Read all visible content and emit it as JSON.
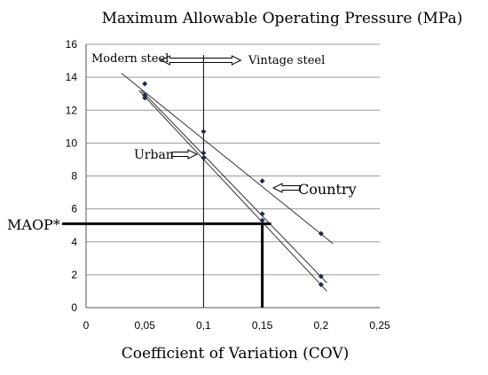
{
  "chart_data": {
    "type": "line",
    "title": "Maximum Allowable Operating Pressure (MPa)",
    "xlabel": "Coefficient of Variation (COV)",
    "ylabel": "",
    "xlim": [
      0,
      0.25
    ],
    "ylim": [
      0,
      16
    ],
    "x_ticks": [
      0,
      0.05,
      0.1,
      0.15,
      0.2,
      0.25
    ],
    "x_tick_labels": [
      "0",
      "0,05",
      "0,1",
      "0,15",
      "0,2",
      "0,25"
    ],
    "y_ticks": [
      0,
      2,
      4,
      6,
      8,
      10,
      12,
      14,
      16
    ],
    "y_tick_labels": [
      "0",
      "2",
      "4",
      "6",
      "8",
      "10",
      "12",
      "14",
      "16"
    ],
    "grid": "horizontal",
    "series": [
      {
        "name": "Country",
        "points": [
          [
            0.05,
            13.6
          ],
          [
            0.1,
            10.7
          ],
          [
            0.15,
            7.7
          ],
          [
            0.2,
            4.5
          ]
        ],
        "trend": [
          [
            0.03,
            14.25
          ],
          [
            0.21,
            3.9
          ]
        ]
      },
      {
        "name": "Urban",
        "points": [
          [
            0.05,
            12.9
          ],
          [
            0.1,
            9.4
          ],
          [
            0.15,
            5.7
          ],
          [
            0.2,
            1.9
          ]
        ],
        "trend": [
          [
            0.047,
            13.2
          ],
          [
            0.205,
            1.5
          ]
        ]
      },
      {
        "name": "",
        "points": [
          [
            0.05,
            12.75
          ],
          [
            0.1,
            9.1
          ],
          [
            0.15,
            5.3
          ],
          [
            0.2,
            1.4
          ]
        ],
        "trend": [
          [
            0.045,
            13.2
          ],
          [
            0.205,
            1.0
          ]
        ]
      }
    ],
    "vertical_line": {
      "x": 0.1,
      "y_top": 16
    },
    "annotations": {
      "modern_steel": "Modern steel",
      "vintage_steel": "Vintage steel",
      "urban": "Urban",
      "country": "Country",
      "maop": "MAOP*"
    },
    "maop_marker": {
      "x": 0.15,
      "y": 5.1
    }
  }
}
